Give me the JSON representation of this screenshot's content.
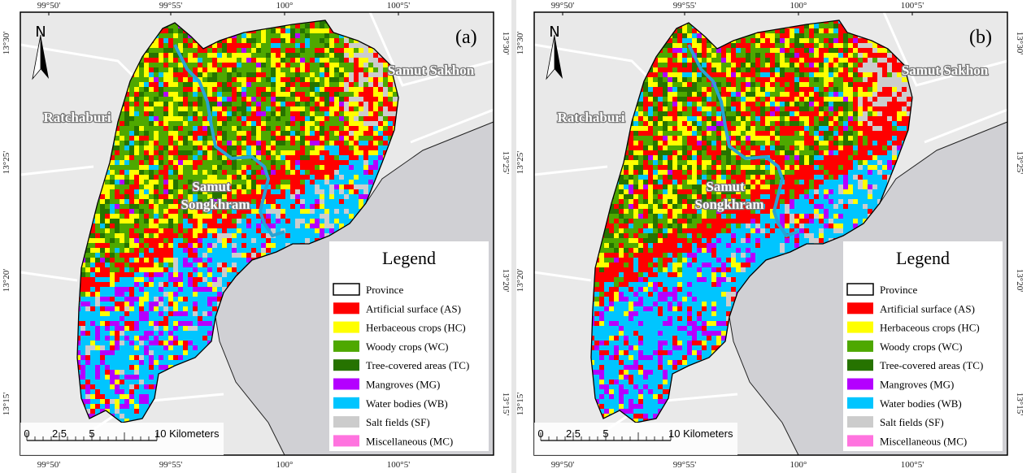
{
  "panels": [
    {
      "label": "(a)"
    },
    {
      "label": "(b)"
    }
  ],
  "map": {
    "north": "N",
    "places": {
      "samut_sakhon": "Samut Sakhon",
      "ratchaburi": "Ratchaburi",
      "samut_songkhram": [
        "Samut",
        "Songkhram"
      ]
    },
    "lon_labels": [
      "99°50'",
      "99°55'",
      "100°",
      "100°5'"
    ],
    "lat_labels": [
      "13°30'",
      "13°25'",
      "13°20'",
      "13°15'"
    ],
    "scale": [
      "0",
      "2.5",
      "5",
      "10 Kilometers"
    ],
    "legend": {
      "title": "Legend",
      "items": [
        {
          "label": "Province",
          "color": "#ffffff"
        },
        {
          "label": "Artificial surface (AS)",
          "color": "#ff0000"
        },
        {
          "label": "Herbaceous crops (HC)",
          "color": "#ffff00"
        },
        {
          "label": "Woody crops (WC)",
          "color": "#4ea800"
        },
        {
          "label": "Tree-covered areas (TC)",
          "color": "#267300"
        },
        {
          "label": "Mangroves (MG)",
          "color": "#b400ff"
        },
        {
          "label": "Water bodies (WB)",
          "color": "#00c5ff"
        },
        {
          "label": "Salt fields (SF)",
          "color": "#cccccc"
        },
        {
          "label": "Miscellaneous (MC)",
          "color": "#ff73df"
        }
      ]
    }
  }
}
